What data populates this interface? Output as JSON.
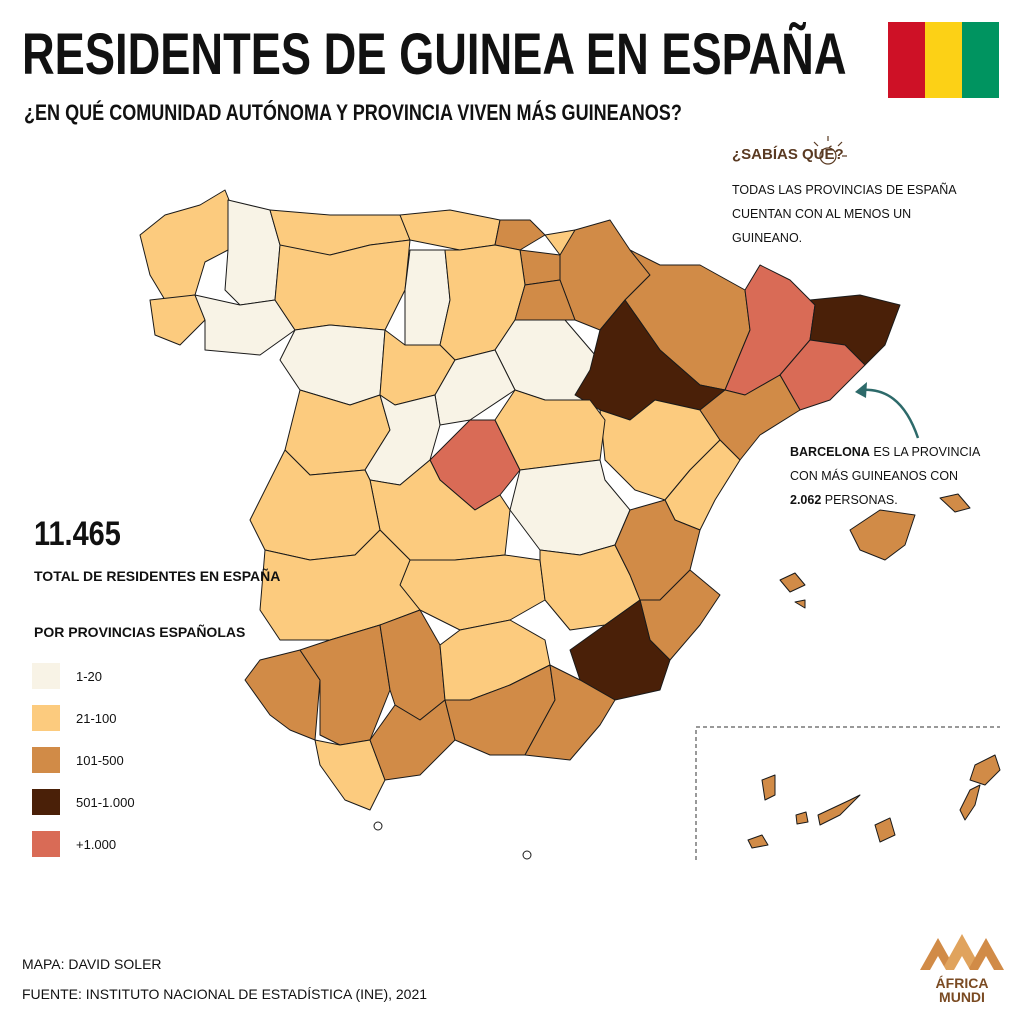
{
  "title": "RESIDENTES DE GUINEA EN ESPAÑA",
  "subtitle": "¿EN QUÉ COMUNIDAD AUTÓNOMA Y PROVINCIA VIVEN MÁS GUINEANOS?",
  "flag_colors": [
    "#ce1126",
    "#fcd116",
    "#009460"
  ],
  "fact": {
    "title": "¿SABÍAS QUÉ?",
    "text": "TODAS LAS PROVINCIAS DE ESPAÑA CUENTAN CON AL MENOS UN GUINEANO."
  },
  "callout": {
    "bold": "BARCELONA",
    "text1": " ES LA PROVINCIA CON MÁS GUINEANOS CON ",
    "bold2": "2.062",
    "text2": " PERSONAS."
  },
  "total": {
    "value": "11.465",
    "label": "TOTAL DE RESIDENTES EN ESPAÑA"
  },
  "legend": {
    "title": "POR PROVINCIAS ESPAÑOLAS",
    "items": [
      {
        "label": "1-20",
        "color": "#f8f3e6"
      },
      {
        "label": "21-100",
        "color": "#fccb7e"
      },
      {
        "label": "101-500",
        "color": "#d18b47"
      },
      {
        "label": "501-1.000",
        "color": "#4a2008"
      },
      {
        "label": "+1.000",
        "color": "#d96b56"
      }
    ]
  },
  "footer": {
    "author": "MAPA: DAVID SOLER",
    "source": "FUENTE: INSTITUTO NACIONAL DE ESTADÍSTICA (INE), 2021"
  },
  "logo": {
    "line1": "ÁFRICA",
    "line2": "MUNDI"
  }
}
